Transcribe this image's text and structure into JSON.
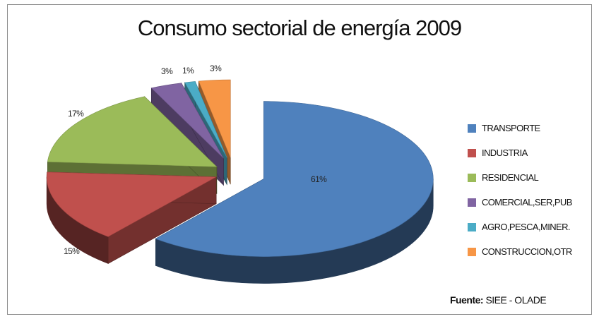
{
  "chart_data": {
    "type": "pie",
    "title": "Consumo sectorial de energía 2009",
    "slices": [
      {
        "name": "TRANSPORTE",
        "value": 61,
        "label": "61%",
        "color": "#4f81bd"
      },
      {
        "name": "INDUSTRIA",
        "value": 15,
        "label": "15%",
        "color": "#c0504d"
      },
      {
        "name": "RESIDENCIAL",
        "value": 17,
        "label": "17%",
        "color": "#9bbb59"
      },
      {
        "name": "COMERCIAL,SER,PUB",
        "value": 3,
        "label": "3%",
        "color": "#8064a2"
      },
      {
        "name": "AGRO,PESCA,MINER.",
        "value": 1,
        "label": "1%",
        "color": "#4bacc6"
      },
      {
        "name": "CONSTRUCCION,OTR",
        "value": 3,
        "label": "3%",
        "color": "#f79646"
      }
    ],
    "legend_position": "right",
    "style": "3d-exploded"
  },
  "source": {
    "prefix": "Fuente:",
    "text": "SIEE - OLADE"
  }
}
